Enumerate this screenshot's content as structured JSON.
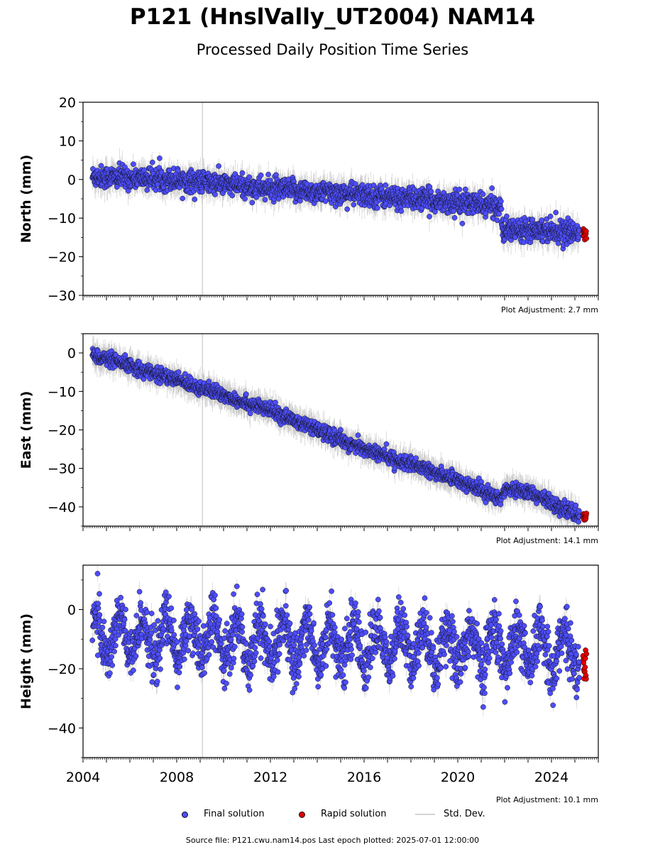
{
  "title": "P121 (HnslVally_UT2004) NAM14",
  "subtitle": "Processed Daily Position Time Series",
  "footer": "Source file: P121.cwu.nam14.pos  Last epoch plotted: 2025-07-01 12:00:00",
  "legend": {
    "final": "Final solution",
    "rapid": "Rapid solution",
    "std": "Std. Dev."
  },
  "colors": {
    "final": "#4d4dff",
    "rapid": "#e00000",
    "std": "#9a9a9a",
    "marker_edge": "#111111",
    "vline": "#d3d3d3"
  },
  "chart_data": [
    {
      "type": "scatter",
      "ylabel": "North (mm)",
      "adjustment_label": "Plot Adjustment: 2.7 mm",
      "ylim": [
        -30,
        20
      ],
      "yticks": [
        20,
        10,
        0,
        -10,
        -20,
        -30
      ],
      "xlim": [
        2004.0,
        2026.0
      ],
      "x_tick_labels_shown": false,
      "final_trend": [
        [
          2004.4,
          0.8
        ],
        [
          2008.0,
          0.0
        ],
        [
          2012.0,
          -2.5
        ],
        [
          2016.0,
          -4.0
        ],
        [
          2019.0,
          -5.5
        ],
        [
          2021.85,
          -7.0
        ],
        [
          2021.9,
          -13.5
        ],
        [
          2023.0,
          -12.5
        ],
        [
          2025.2,
          -14.0
        ]
      ],
      "noise": 1.4,
      "rapid_range": [
        2025.35,
        2025.5
      ],
      "rapid_level": -14.0
    },
    {
      "type": "scatter",
      "ylabel": "East (mm)",
      "adjustment_label": "Plot Adjustment: 14.1 mm",
      "ylim": [
        -45,
        5
      ],
      "yticks": [
        0,
        -10,
        -20,
        -30,
        -40
      ],
      "xlim": [
        2004.0,
        2026.0
      ],
      "x_tick_labels_shown": false,
      "final_trend": [
        [
          2004.4,
          -0.5
        ],
        [
          2008.0,
          -7.0
        ],
        [
          2012.0,
          -15.0
        ],
        [
          2016.0,
          -25.0
        ],
        [
          2020.0,
          -33.0
        ],
        [
          2021.85,
          -38.0
        ],
        [
          2022.0,
          -35.0
        ],
        [
          2023.0,
          -36.0
        ],
        [
          2025.2,
          -42.5
        ]
      ],
      "noise": 0.9,
      "rapid_range": [
        2025.35,
        2025.5
      ],
      "rapid_level": -42.5
    },
    {
      "type": "scatter",
      "ylabel": "Height (mm)",
      "adjustment_label": "Plot Adjustment: 10.1 mm",
      "ylim": [
        -50,
        15
      ],
      "yticks": [
        0,
        -20,
        -40
      ],
      "xlim": [
        2004.0,
        2026.0
      ],
      "x_tick_labels_shown": true,
      "xticks": [
        2004,
        2008,
        2012,
        2016,
        2020,
        2024
      ],
      "final_trend": [
        [
          2004.4,
          -9.0
        ],
        [
          2025.2,
          -14.0
        ]
      ],
      "seasonal_amplitude": 7.0,
      "noise": 4.5,
      "rapid_range": [
        2025.35,
        2025.5
      ],
      "rapid_level": -18.0
    }
  ],
  "vertical_marker_x": 2009.1
}
